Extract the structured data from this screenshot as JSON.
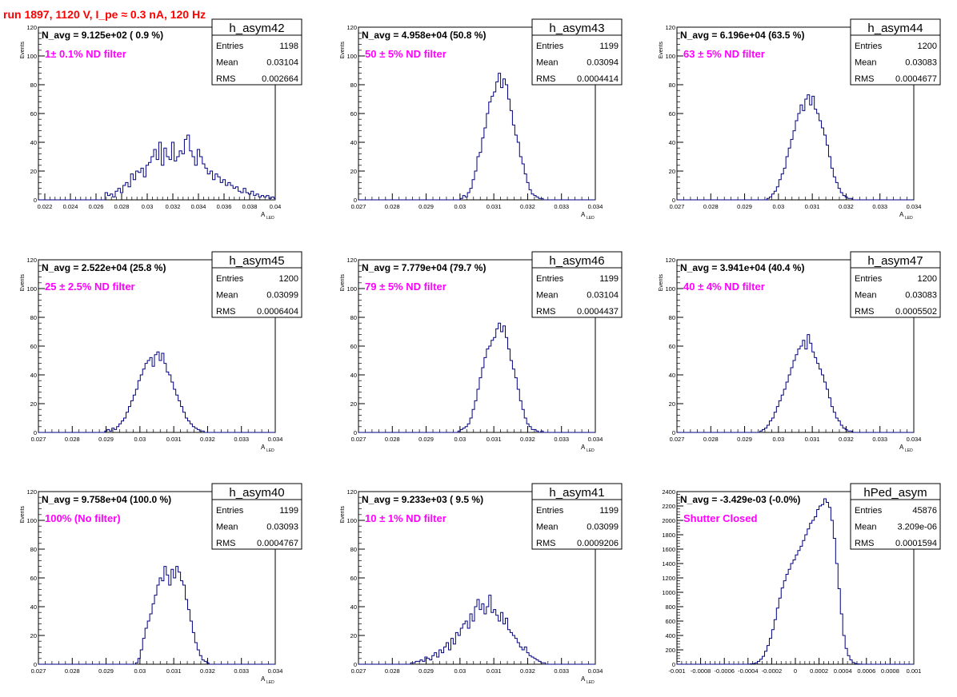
{
  "page": {
    "run_title": "run 1897,  1120 V, I_pe ≈ 0.3 nA, 120 Hz"
  },
  "colors": {
    "histogram": "#000080",
    "annotation": "#ff00ff",
    "title": "#ff0000"
  },
  "stats_labels": {
    "entries": "Entries",
    "mean": "Mean",
    "rms": "RMS"
  },
  "chart_data": [
    {
      "type": "histogram",
      "name": "h_asym42",
      "navg": "N_avg = 9.125e+02 ( 0.9 %)",
      "annotation": "1± 0.1% ND filter",
      "entries": "1198",
      "mean": "0.03104",
      "rms": "0.002664",
      "xlabel": "A_LED",
      "ylabel": "Events",
      "xlim": [
        0.0215,
        0.04
      ],
      "ylim": [
        0,
        120
      ],
      "xticks": [
        0.022,
        0.024,
        0.026,
        0.028,
        0.03,
        0.032,
        0.034,
        0.036,
        0.038,
        0.04
      ],
      "xtick_labels": [
        "0.022",
        "0.024",
        "0.026",
        "0.028",
        "0.03",
        "0.032",
        "0.034",
        "0.036",
        "0.038",
        "0.04"
      ],
      "yticks": [
        0,
        20,
        40,
        60,
        80,
        100,
        120
      ],
      "ytick_labels": [
        "0",
        "20",
        "40",
        "60",
        "80",
        "100",
        "120"
      ],
      "bin_start": 0.0215,
      "bin_width": 0.0002,
      "counts": [
        0,
        0,
        0,
        0,
        0,
        0,
        0,
        0,
        0,
        0,
        0,
        0,
        0,
        0,
        0,
        0,
        0,
        0,
        0,
        0,
        0,
        0,
        0,
        0,
        0,
        0,
        5,
        3,
        4,
        2,
        6,
        8,
        5,
        10,
        12,
        9,
        18,
        14,
        20,
        19,
        22,
        16,
        24,
        26,
        30,
        35,
        28,
        40,
        24,
        36,
        30,
        28,
        40,
        27,
        30,
        34,
        32,
        42,
        45,
        34,
        30,
        24,
        35,
        30,
        25,
        22,
        18,
        20,
        14,
        18,
        16,
        12,
        14,
        10,
        12,
        10,
        8,
        9,
        6,
        5,
        8,
        5,
        4,
        6,
        3,
        4,
        2,
        3,
        2,
        3,
        1,
        2,
        1,
        0,
        0
      ]
    },
    {
      "type": "histogram",
      "name": "h_asym43",
      "navg": "N_avg = 4.958e+04 (50.8 %)",
      "annotation": "50 ± 5% ND filter",
      "entries": "1199",
      "mean": "0.03094",
      "rms": "0.0004414",
      "xlabel": "A_LED",
      "ylabel": "Events",
      "xlim": [
        0.027,
        0.034
      ],
      "ylim": [
        0,
        120
      ],
      "xticks": [
        0.027,
        0.028,
        0.029,
        0.03,
        0.031,
        0.032,
        0.033,
        0.034
      ],
      "xtick_labels": [
        "0.027",
        "0.028",
        "0.029",
        "0.03",
        "0.031",
        "0.032",
        "0.033",
        "0.034"
      ],
      "yticks": [
        0,
        20,
        40,
        60,
        80,
        100,
        120
      ],
      "ytick_labels": [
        "0",
        "20",
        "40",
        "60",
        "80",
        "100",
        "120"
      ],
      "bin_start": 0.027,
      "bin_width": 7e-05,
      "counts": [
        0,
        0,
        0,
        0,
        0,
        0,
        0,
        0,
        0,
        0,
        0,
        0,
        0,
        0,
        0,
        0,
        0,
        0,
        0,
        0,
        0,
        0,
        0,
        0,
        0,
        0,
        0,
        0,
        0,
        0,
        0,
        0,
        0,
        0,
        0,
        0,
        0,
        0,
        0,
        0,
        0,
        0,
        0,
        1,
        3,
        2,
        5,
        8,
        14,
        20,
        30,
        33,
        43,
        50,
        60,
        68,
        72,
        75,
        82,
        88,
        78,
        84,
        80,
        70,
        62,
        52,
        45,
        40,
        30,
        25,
        18,
        12,
        7,
        4,
        3,
        2,
        1,
        1,
        0,
        0,
        0,
        0,
        0,
        0,
        0,
        0,
        0,
        0,
        0,
        0,
        0,
        0,
        0,
        0,
        0,
        0,
        0,
        0,
        0,
        0
      ]
    },
    {
      "type": "histogram",
      "name": "h_asym44",
      "navg": "N_avg = 6.196e+04 (63.5 %)",
      "annotation": "63 ± 5% ND filter",
      "entries": "1200",
      "mean": "0.03083",
      "rms": "0.0004677",
      "xlabel": "A_LED",
      "ylabel": "Events",
      "xlim": [
        0.027,
        0.034
      ],
      "ylim": [
        0,
        120
      ],
      "xticks": [
        0.027,
        0.028,
        0.029,
        0.03,
        0.031,
        0.032,
        0.033,
        0.034
      ],
      "xtick_labels": [
        "0.027",
        "0.028",
        "0.029",
        "0.03",
        "0.031",
        "0.032",
        "0.033",
        "0.034"
      ],
      "yticks": [
        0,
        20,
        40,
        60,
        80,
        100,
        120
      ],
      "ytick_labels": [
        "0",
        "20",
        "40",
        "60",
        "80",
        "100",
        "120"
      ],
      "bin_start": 0.027,
      "bin_width": 7e-05,
      "counts": [
        0,
        0,
        0,
        0,
        0,
        0,
        0,
        0,
        0,
        0,
        0,
        0,
        0,
        0,
        0,
        0,
        0,
        0,
        0,
        0,
        0,
        0,
        0,
        0,
        0,
        0,
        0,
        0,
        0,
        0,
        0,
        0,
        0,
        0,
        0,
        0,
        0,
        0,
        1,
        2,
        4,
        6,
        9,
        14,
        18,
        22,
        30,
        36,
        42,
        48,
        55,
        60,
        66,
        62,
        70,
        73,
        66,
        72,
        63,
        60,
        55,
        50,
        45,
        38,
        30,
        22,
        16,
        12,
        8,
        5,
        3,
        2,
        1,
        1,
        0,
        0,
        0,
        0,
        0,
        0,
        0,
        0,
        0,
        0,
        0,
        0,
        0,
        0,
        0,
        0,
        0,
        0,
        0,
        0,
        0,
        0,
        0,
        0,
        0,
        0
      ]
    },
    {
      "type": "histogram",
      "name": "h_asym45",
      "navg": "N_avg = 2.522e+04 (25.8 %)",
      "annotation": "25 ± 2.5% ND filter",
      "entries": "1200",
      "mean": "0.03099",
      "rms": "0.0006404",
      "xlabel": "A_LED",
      "ylabel": "Events",
      "xlim": [
        0.027,
        0.034
      ],
      "ylim": [
        0,
        120
      ],
      "xticks": [
        0.027,
        0.028,
        0.029,
        0.03,
        0.031,
        0.032,
        0.033,
        0.034
      ],
      "xtick_labels": [
        "0.027",
        "0.028",
        "0.029",
        "0.03",
        "0.031",
        "0.032",
        "0.033",
        "0.034"
      ],
      "yticks": [
        0,
        20,
        40,
        60,
        80,
        100,
        120
      ],
      "ytick_labels": [
        "0",
        "20",
        "40",
        "60",
        "80",
        "100",
        "120"
      ],
      "bin_start": 0.027,
      "bin_width": 7e-05,
      "counts": [
        0,
        0,
        0,
        0,
        0,
        0,
        0,
        0,
        0,
        0,
        0,
        0,
        0,
        0,
        0,
        0,
        0,
        0,
        0,
        0,
        0,
        0,
        0,
        0,
        0,
        0,
        0,
        0,
        1,
        2,
        1,
        3,
        2,
        4,
        6,
        8,
        10,
        14,
        18,
        22,
        26,
        30,
        36,
        40,
        44,
        48,
        50,
        52,
        46,
        54,
        56,
        50,
        55,
        48,
        42,
        40,
        35,
        30,
        26,
        22,
        18,
        14,
        10,
        8,
        6,
        4,
        3,
        2,
        1,
        1,
        0,
        0,
        0,
        0,
        0,
        0,
        0,
        0,
        0,
        0,
        0,
        0,
        0,
        0,
        0,
        0,
        0,
        0,
        0,
        0,
        0,
        0,
        0,
        0,
        0,
        0,
        0,
        0,
        0,
        0
      ]
    },
    {
      "type": "histogram",
      "name": "h_asym46",
      "navg": "N_avg = 7.779e+04 (79.7 %)",
      "annotation": "79 ± 5% ND filter",
      "entries": "1199",
      "mean": "0.03104",
      "rms": "0.0004437",
      "xlabel": "A_LED",
      "ylabel": "Events",
      "xlim": [
        0.027,
        0.034
      ],
      "ylim": [
        0,
        120
      ],
      "xticks": [
        0.027,
        0.028,
        0.029,
        0.03,
        0.031,
        0.032,
        0.033,
        0.034
      ],
      "xtick_labels": [
        "0.027",
        "0.028",
        "0.029",
        "0.03",
        "0.031",
        "0.032",
        "0.033",
        "0.034"
      ],
      "yticks": [
        0,
        20,
        40,
        60,
        80,
        100,
        120
      ],
      "ytick_labels": [
        "0",
        "20",
        "40",
        "60",
        "80",
        "100",
        "120"
      ],
      "bin_start": 0.027,
      "bin_width": 7e-05,
      "counts": [
        0,
        0,
        0,
        0,
        0,
        0,
        0,
        0,
        0,
        0,
        0,
        0,
        0,
        0,
        0,
        0,
        0,
        0,
        0,
        0,
        0,
        0,
        0,
        0,
        0,
        0,
        0,
        0,
        0,
        0,
        0,
        0,
        0,
        0,
        0,
        0,
        0,
        0,
        0,
        0,
        0,
        0,
        1,
        2,
        3,
        4,
        6,
        10,
        16,
        22,
        30,
        38,
        45,
        52,
        58,
        60,
        64,
        66,
        72,
        76,
        70,
        74,
        66,
        58,
        50,
        44,
        38,
        30,
        22,
        16,
        10,
        6,
        4,
        2,
        2,
        1,
        0,
        1,
        0,
        0,
        0,
        0,
        0,
        0,
        0,
        0,
        0,
        0,
        0,
        0,
        0,
        0,
        0,
        0,
        0,
        0,
        0,
        0,
        0,
        0
      ]
    },
    {
      "type": "histogram",
      "name": "h_asym47",
      "navg": "N_avg = 3.941e+04 (40.4 %)",
      "annotation": "40 ± 4% ND filter",
      "entries": "1200",
      "mean": "0.03083",
      "rms": "0.0005502",
      "xlabel": "A_LED",
      "ylabel": "Events",
      "xlim": [
        0.027,
        0.034
      ],
      "ylim": [
        0,
        120
      ],
      "xticks": [
        0.027,
        0.028,
        0.029,
        0.03,
        0.031,
        0.032,
        0.033,
        0.034
      ],
      "xtick_labels": [
        "0.027",
        "0.028",
        "0.029",
        "0.03",
        "0.031",
        "0.032",
        "0.033",
        "0.034"
      ],
      "yticks": [
        0,
        20,
        40,
        60,
        80,
        100,
        120
      ],
      "ytick_labels": [
        "0",
        "20",
        "40",
        "60",
        "80",
        "100",
        "120"
      ],
      "bin_start": 0.027,
      "bin_width": 7e-05,
      "counts": [
        0,
        0,
        0,
        0,
        0,
        0,
        0,
        0,
        0,
        0,
        0,
        0,
        0,
        0,
        0,
        0,
        0,
        0,
        0,
        0,
        0,
        0,
        0,
        0,
        0,
        0,
        0,
        0,
        0,
        0,
        0,
        0,
        0,
        0,
        0,
        1,
        2,
        3,
        5,
        8,
        10,
        14,
        18,
        22,
        26,
        30,
        35,
        40,
        45,
        50,
        54,
        58,
        60,
        64,
        58,
        68,
        62,
        56,
        52,
        48,
        44,
        40,
        35,
        30,
        24,
        18,
        14,
        10,
        8,
        5,
        3,
        2,
        1,
        1,
        0,
        0,
        0,
        0,
        0,
        0,
        0,
        0,
        0,
        0,
        0,
        0,
        0,
        0,
        0,
        0,
        0,
        0,
        0,
        0,
        0,
        0,
        0,
        0,
        0,
        0
      ]
    },
    {
      "type": "histogram",
      "name": "h_asym40",
      "navg": "N_avg = 9.758e+04 (100.0 %)",
      "annotation": "100% (No filter)",
      "entries": "1199",
      "mean": "0.03093",
      "rms": "0.0004767",
      "xlabel": "A_LED",
      "ylabel": "Events",
      "xlim": [
        0.027,
        0.034
      ],
      "ylim": [
        0,
        120
      ],
      "xticks": [
        0.027,
        0.028,
        0.029,
        0.03,
        0.031,
        0.032,
        0.033,
        0.034
      ],
      "xtick_labels": [
        "0.027",
        "0.028",
        "0.029",
        "0.03",
        "0.031",
        "0.032",
        "0.033",
        "0.034"
      ],
      "yticks": [
        0,
        20,
        40,
        60,
        80,
        100,
        120
      ],
      "ytick_labels": [
        "0",
        "20",
        "40",
        "60",
        "80",
        "100",
        "120"
      ],
      "bin_start": 0.027,
      "bin_width": 7e-05,
      "counts": [
        0,
        0,
        0,
        0,
        0,
        0,
        0,
        0,
        0,
        0,
        0,
        0,
        0,
        0,
        0,
        0,
        0,
        0,
        0,
        0,
        0,
        0,
        0,
        0,
        0,
        0,
        0,
        0,
        0,
        0,
        0,
        0,
        0,
        0,
        0,
        0,
        0,
        0,
        0,
        0,
        0,
        1,
        4,
        10,
        18,
        25,
        30,
        35,
        42,
        48,
        55,
        60,
        58,
        68,
        62,
        55,
        66,
        60,
        68,
        64,
        58,
        55,
        45,
        38,
        30,
        22,
        15,
        10,
        6,
        3,
        2,
        1,
        0,
        0,
        0,
        0,
        0,
        0,
        0,
        0,
        0,
        0,
        0,
        0,
        0,
        0,
        0,
        0,
        0,
        0,
        0,
        0,
        0,
        0,
        0,
        0,
        0,
        0,
        0,
        0
      ]
    },
    {
      "type": "histogram",
      "name": "h_asym41",
      "navg": "N_avg = 9.233e+03 ( 9.5 %)",
      "annotation": "10 ± 1% ND filter",
      "entries": "1199",
      "mean": "0.03099",
      "rms": "0.0009206",
      "xlabel": "A_LED",
      "ylabel": "Events",
      "xlim": [
        0.027,
        0.034
      ],
      "ylim": [
        0,
        120
      ],
      "xticks": [
        0.027,
        0.028,
        0.029,
        0.03,
        0.031,
        0.032,
        0.033,
        0.034
      ],
      "xtick_labels": [
        "0.027",
        "0.028",
        "0.029",
        "0.03",
        "0.031",
        "0.032",
        "0.033",
        "0.034"
      ],
      "yticks": [
        0,
        20,
        40,
        60,
        80,
        100,
        120
      ],
      "ytick_labels": [
        "0",
        "20",
        "40",
        "60",
        "80",
        "100",
        "120"
      ],
      "bin_start": 0.027,
      "bin_width": 7e-05,
      "counts": [
        0,
        0,
        0,
        0,
        0,
        0,
        0,
        0,
        0,
        0,
        0,
        0,
        0,
        0,
        0,
        0,
        0,
        0,
        0,
        0,
        0,
        0,
        1,
        1,
        2,
        2,
        3,
        2,
        5,
        4,
        3,
        6,
        8,
        5,
        10,
        8,
        12,
        15,
        10,
        18,
        14,
        22,
        20,
        25,
        28,
        30,
        25,
        35,
        30,
        40,
        45,
        38,
        42,
        35,
        40,
        48,
        36,
        38,
        34,
        30,
        36,
        28,
        32,
        24,
        22,
        20,
        18,
        15,
        12,
        10,
        12,
        8,
        6,
        5,
        4,
        3,
        2,
        1,
        1,
        0,
        0,
        0,
        0,
        0,
        0,
        0,
        0,
        0,
        0,
        0,
        0,
        0,
        0,
        0,
        0,
        0,
        0,
        0,
        0,
        0
      ]
    },
    {
      "type": "histogram",
      "name": "hPed_asym",
      "navg": "N_avg = -3.429e-03 (-0.0%)",
      "annotation": "Shutter Closed",
      "entries": "45876",
      "mean": "3.209e-06",
      "rms": "0.0001594",
      "xlabel": "",
      "ylabel": "",
      "xlim": [
        -0.001,
        0.001
      ],
      "ylim": [
        0,
        2400
      ],
      "xticks": [
        -0.001,
        -0.0008,
        -0.0006,
        -0.0004,
        -0.0002,
        0,
        0.0002,
        0.0004,
        0.0006,
        0.0008,
        0.001
      ],
      "xtick_labels": [
        "-0.001",
        "-0.0008",
        "-0.0006",
        "-0.0004",
        "-0.0002",
        "0",
        "0.0002",
        "0.0004",
        "0.0006",
        "0.0008",
        "0.001"
      ],
      "yticks": [
        0,
        200,
        400,
        600,
        800,
        1000,
        1200,
        1400,
        1600,
        1800,
        2000,
        2200,
        2400
      ],
      "ytick_labels": [
        "0",
        "200",
        "400",
        "600",
        "800",
        "1000",
        "1200",
        "1400",
        "1600",
        "1800",
        "2000",
        "2200",
        "2400"
      ],
      "bin_start": -0.001,
      "bin_width": 2e-05,
      "counts": [
        0,
        0,
        0,
        0,
        0,
        0,
        0,
        0,
        0,
        0,
        0,
        0,
        0,
        0,
        0,
        0,
        0,
        0,
        0,
        0,
        0,
        0,
        0,
        0,
        0,
        0,
        0,
        0,
        0,
        0,
        2,
        5,
        10,
        20,
        40,
        70,
        110,
        180,
        260,
        360,
        480,
        620,
        780,
        920,
        1060,
        1160,
        1250,
        1320,
        1400,
        1450,
        1520,
        1580,
        1640,
        1720,
        1800,
        1880,
        1960,
        2000,
        2050,
        2150,
        2200,
        2220,
        2300,
        2250,
        2180,
        2000,
        1750,
        1400,
        1050,
        700,
        400,
        220,
        120,
        60,
        25,
        10,
        4,
        2,
        0,
        0,
        0,
        0,
        0,
        0,
        0,
        0,
        0,
        0,
        0,
        0,
        0,
        0,
        0,
        0,
        0,
        0,
        0,
        0,
        0,
        0
      ]
    }
  ]
}
